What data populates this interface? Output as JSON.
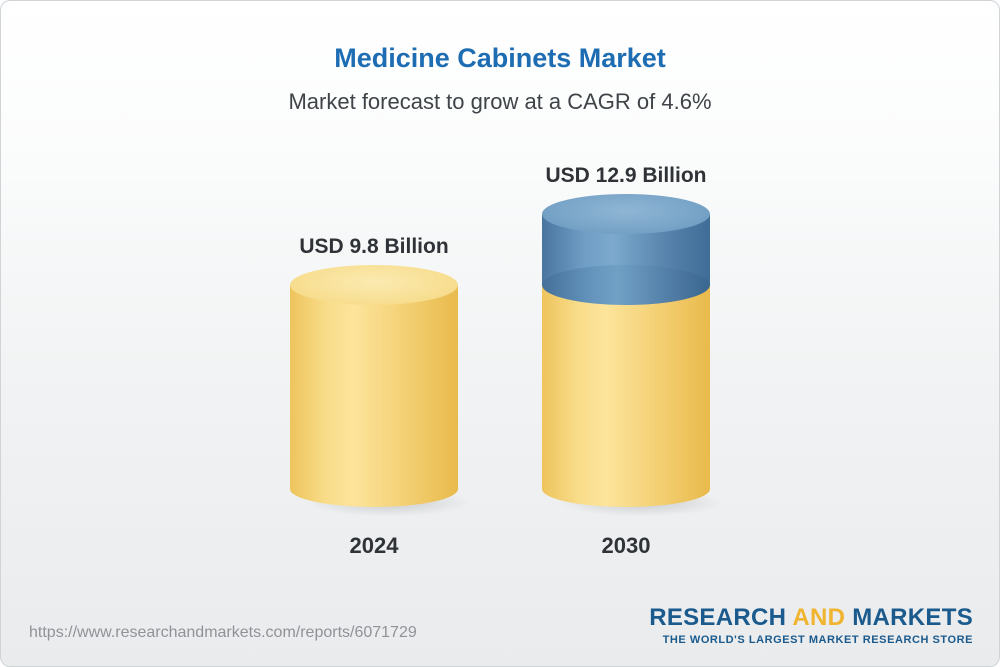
{
  "header": {
    "title": "Medicine Cabinets Market",
    "subtitle": "Market forecast to grow at a CAGR of 4.6%"
  },
  "chart_data": {
    "type": "bar",
    "style": "3d-cylinder",
    "title": "Medicine Cabinets Market",
    "subtitle": "Market forecast to grow at a CAGR of 4.6%",
    "unit": "USD Billion",
    "categories": [
      "2024",
      "2030"
    ],
    "values": [
      9.8,
      12.9
    ],
    "labels": [
      "USD 9.8 Billion",
      "USD 12.9 Billion"
    ],
    "cagr_percent": 4.6,
    "legend": "none",
    "axes": "none",
    "colors": {
      "base_cylinder": "#f5cf72",
      "growth_segment": "#5d8cb4",
      "title": "#1e6db3"
    }
  },
  "footer": {
    "url": "https://www.researchandmarkets.com/reports/6071729",
    "logo": {
      "research": "RESEARCH",
      "and": "AND",
      "markets": "MARKETS",
      "tagline": "THE WORLD'S LARGEST MARKET RESEARCH STORE"
    }
  }
}
